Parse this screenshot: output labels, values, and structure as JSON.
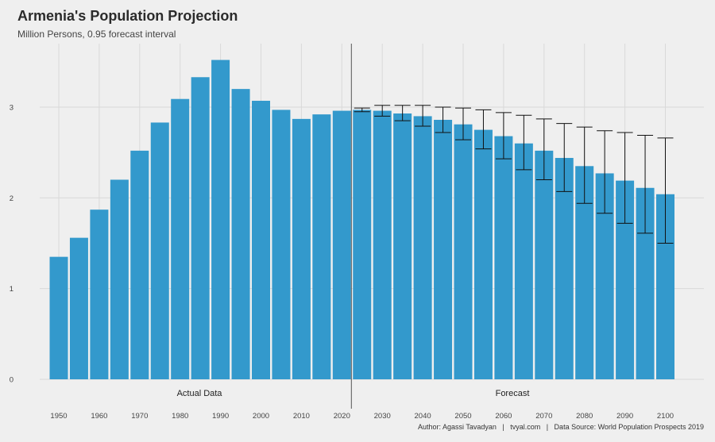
{
  "title": "Armenia's Population Projection",
  "subtitle": "Million Persons, 0.95 forecast interval",
  "caption": "Author: Agassi Tavadyan   |   tvyal.com   |   Data Source: World Population Prospects 2019",
  "annotations": {
    "actual": "Actual Data",
    "forecast": "Forecast"
  },
  "colors": {
    "background": "#efefef",
    "bar": "#3399cc",
    "grid": "#d9d9d9",
    "errorbar": "#111111",
    "divider": "#555555"
  },
  "chart_data": {
    "type": "bar",
    "title": "Armenia's Population Projection",
    "subtitle": "Million Persons, 0.95 forecast interval",
    "xlabel": "",
    "ylabel": "",
    "ylim": [
      0,
      3.55
    ],
    "grid": true,
    "y_ticks": [
      0,
      1,
      2,
      3
    ],
    "x_ticks": [
      1950,
      1960,
      1970,
      1980,
      1990,
      2000,
      2010,
      2020,
      2030,
      2040,
      2050,
      2060,
      2070,
      2080,
      2090,
      2100
    ],
    "forecast_start_year": 2020,
    "years": [
      1950,
      1955,
      1960,
      1965,
      1970,
      1975,
      1980,
      1985,
      1990,
      1995,
      2000,
      2005,
      2010,
      2015,
      2020,
      2025,
      2030,
      2035,
      2040,
      2045,
      2050,
      2055,
      2060,
      2065,
      2070,
      2075,
      2080,
      2085,
      2090,
      2095,
      2100
    ],
    "values": [
      1.35,
      1.56,
      1.87,
      2.2,
      2.52,
      2.83,
      3.09,
      3.33,
      3.52,
      3.2,
      3.07,
      2.97,
      2.87,
      2.92,
      2.96,
      2.97,
      2.96,
      2.93,
      2.9,
      2.86,
      2.81,
      2.75,
      2.68,
      2.6,
      2.52,
      2.44,
      2.35,
      2.27,
      2.19,
      2.11,
      2.04
    ],
    "interval_low": [
      null,
      null,
      null,
      null,
      null,
      null,
      null,
      null,
      null,
      null,
      null,
      null,
      null,
      null,
      null,
      2.95,
      2.9,
      2.85,
      2.79,
      2.72,
      2.64,
      2.54,
      2.43,
      2.31,
      2.2,
      2.07,
      1.94,
      1.83,
      1.72,
      1.61,
      1.5
    ],
    "interval_high": [
      null,
      null,
      null,
      null,
      null,
      null,
      null,
      null,
      null,
      null,
      null,
      null,
      null,
      null,
      null,
      2.99,
      3.02,
      3.02,
      3.02,
      3.0,
      2.99,
      2.97,
      2.94,
      2.91,
      2.87,
      2.82,
      2.78,
      2.74,
      2.72,
      2.69,
      2.66
    ]
  }
}
